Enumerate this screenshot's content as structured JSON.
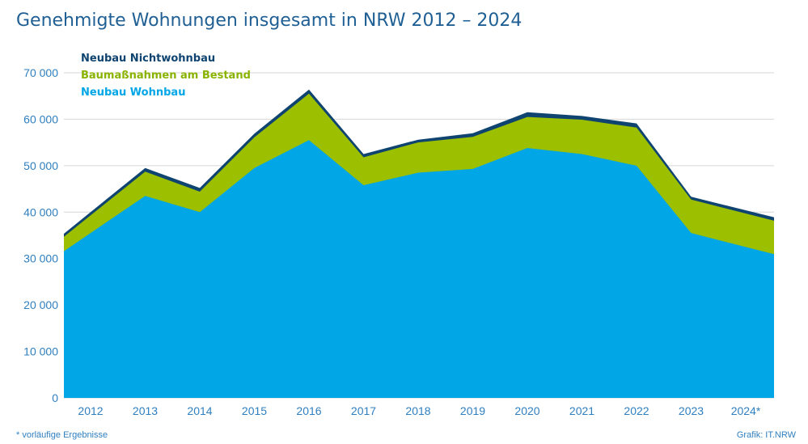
{
  "chart_data": {
    "type": "area",
    "title": "Genehmigte Wohnungen insgesamt in NRW 2012 – 2024",
    "categories": [
      "2012",
      "2013",
      "2014",
      "2015",
      "2016",
      "2017",
      "2018",
      "2019",
      "2020",
      "2021",
      "2022",
      "2023",
      "2024*"
    ],
    "ylim": [
      0,
      70000
    ],
    "yticks": [
      0,
      10000,
      20000,
      30000,
      40000,
      50000,
      60000,
      70000
    ],
    "ytick_labels": [
      "0",
      "10 000",
      "20 000",
      "30 000",
      "40 000",
      "50 000",
      "60 000",
      "70 000"
    ],
    "grid": true,
    "stacked": true,
    "legend_position": "top-left",
    "series": [
      {
        "name": "Neubau Wohnbau",
        "color": "#00a6e6",
        "values": [
          35500,
          43500,
          40000,
          49500,
          55500,
          45800,
          48500,
          49300,
          53800,
          52500,
          50000,
          35500,
          32500
        ]
      },
      {
        "name": "Baumaßnahmen am Bestand",
        "color": "#9cbf00",
        "values": [
          3800,
          5200,
          4400,
          6600,
          10000,
          6000,
          6500,
          6900,
          6700,
          7400,
          8200,
          7200,
          7200
        ]
      },
      {
        "name": "Neubau Nichtwohnbau",
        "color": "#0f4470",
        "values": [
          700,
          800,
          800,
          800,
          900,
          700,
          600,
          800,
          1000,
          800,
          900,
          600,
          700
        ]
      }
    ]
  },
  "legend": [
    {
      "label": "Neubau Nichtwohnbau",
      "color": "#0f4470"
    },
    {
      "label": "Baumaßnahmen am Bestand",
      "color": "#8ab300"
    },
    {
      "label": "Neubau Wohnbau",
      "color": "#00a6e6"
    }
  ],
  "footnote": "* vorläufige Ergebnisse",
  "source": "Grafik: IT.NRW"
}
